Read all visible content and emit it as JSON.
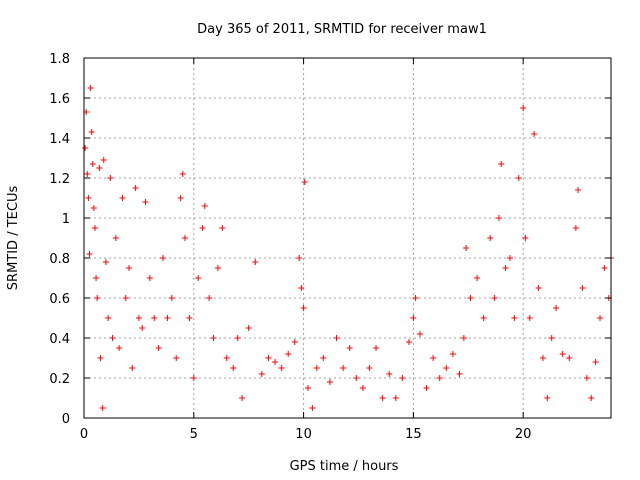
{
  "chart_data": {
    "type": "scatter",
    "title": "Day 365 of 2011, SRMTID for receiver maw1",
    "xlabel": "GPS time / hours",
    "ylabel": "SRMTID / TECUs",
    "xlim": [
      0,
      24
    ],
    "ylim": [
      0,
      1.8
    ],
    "xticks": [
      0,
      5,
      10,
      15,
      20
    ],
    "xtick_labels": [
      "0",
      "5",
      "10",
      "15",
      "20"
    ],
    "yticks": [
      0,
      0.2,
      0.4,
      0.6,
      0.8,
      1,
      1.2,
      1.4,
      1.6,
      1.8
    ],
    "ytick_labels": [
      "0",
      "0.2",
      "0.4",
      "0.6",
      "0.8",
      "1",
      "1.2",
      "1.4",
      "1.6",
      "1.8"
    ],
    "grid": true,
    "marker": "+",
    "color": "#ff0000",
    "series": [
      {
        "name": "SRMTID",
        "points": [
          [
            0.05,
            1.35
          ],
          [
            0.1,
            1.53
          ],
          [
            0.15,
            1.22
          ],
          [
            0.2,
            1.1
          ],
          [
            0.25,
            0.82
          ],
          [
            0.3,
            1.65
          ],
          [
            0.35,
            1.43
          ],
          [
            0.4,
            1.27
          ],
          [
            0.45,
            1.05
          ],
          [
            0.5,
            0.95
          ],
          [
            0.55,
            0.7
          ],
          [
            0.6,
            0.6
          ],
          [
            0.7,
            1.25
          ],
          [
            0.75,
            0.3
          ],
          [
            0.85,
            0.05
          ],
          [
            0.9,
            1.29
          ],
          [
            1.0,
            0.78
          ],
          [
            1.1,
            0.5
          ],
          [
            1.2,
            1.2
          ],
          [
            1.3,
            0.4
          ],
          [
            1.45,
            0.9
          ],
          [
            1.6,
            0.35
          ],
          [
            1.75,
            1.1
          ],
          [
            1.9,
            0.6
          ],
          [
            2.05,
            0.75
          ],
          [
            2.2,
            0.25
          ],
          [
            2.35,
            1.15
          ],
          [
            2.5,
            0.5
          ],
          [
            2.65,
            0.45
          ],
          [
            2.8,
            1.08
          ],
          [
            3.0,
            0.7
          ],
          [
            3.2,
            0.5
          ],
          [
            3.4,
            0.35
          ],
          [
            3.6,
            0.8
          ],
          [
            3.8,
            0.5
          ],
          [
            4.0,
            0.6
          ],
          [
            4.2,
            0.3
          ],
          [
            4.4,
            1.1
          ],
          [
            4.5,
            1.22
          ],
          [
            4.6,
            0.9
          ],
          [
            4.8,
            0.5
          ],
          [
            5.0,
            0.2
          ],
          [
            5.2,
            0.7
          ],
          [
            5.4,
            0.95
          ],
          [
            5.5,
            1.06
          ],
          [
            5.7,
            0.6
          ],
          [
            5.9,
            0.4
          ],
          [
            6.1,
            0.75
          ],
          [
            6.3,
            0.95
          ],
          [
            6.5,
            0.3
          ],
          [
            6.8,
            0.25
          ],
          [
            7.0,
            0.4
          ],
          [
            7.2,
            0.1
          ],
          [
            7.5,
            0.45
          ],
          [
            7.8,
            0.78
          ],
          [
            8.1,
            0.22
          ],
          [
            8.4,
            0.3
          ],
          [
            8.7,
            0.28
          ],
          [
            9.0,
            0.25
          ],
          [
            9.3,
            0.32
          ],
          [
            9.6,
            0.38
          ],
          [
            9.8,
            0.8
          ],
          [
            9.9,
            0.65
          ],
          [
            10.0,
            0.55
          ],
          [
            10.05,
            1.18
          ],
          [
            10.2,
            0.15
          ],
          [
            10.4,
            0.05
          ],
          [
            10.6,
            0.25
          ],
          [
            10.9,
            0.3
          ],
          [
            11.2,
            0.18
          ],
          [
            11.5,
            0.4
          ],
          [
            11.8,
            0.25
          ],
          [
            12.1,
            0.35
          ],
          [
            12.4,
            0.2
          ],
          [
            12.7,
            0.15
          ],
          [
            13.0,
            0.25
          ],
          [
            13.3,
            0.35
          ],
          [
            13.6,
            0.1
          ],
          [
            13.9,
            0.22
          ],
          [
            14.2,
            0.1
          ],
          [
            14.5,
            0.2
          ],
          [
            14.8,
            0.38
          ],
          [
            15.0,
            0.5
          ],
          [
            15.1,
            0.6
          ],
          [
            15.3,
            0.42
          ],
          [
            15.6,
            0.15
          ],
          [
            15.9,
            0.3
          ],
          [
            16.2,
            0.2
          ],
          [
            16.5,
            0.25
          ],
          [
            16.8,
            0.32
          ],
          [
            17.1,
            0.22
          ],
          [
            17.3,
            0.4
          ],
          [
            17.4,
            0.85
          ],
          [
            17.6,
            0.6
          ],
          [
            17.9,
            0.7
          ],
          [
            18.2,
            0.5
          ],
          [
            18.5,
            0.9
          ],
          [
            18.7,
            0.6
          ],
          [
            18.9,
            1.0
          ],
          [
            19.0,
            1.27
          ],
          [
            19.2,
            0.75
          ],
          [
            19.4,
            0.8
          ],
          [
            19.6,
            0.5
          ],
          [
            19.8,
            1.2
          ],
          [
            20.0,
            1.55
          ],
          [
            20.1,
            0.9
          ],
          [
            20.3,
            0.5
          ],
          [
            20.5,
            1.42
          ],
          [
            20.7,
            0.65
          ],
          [
            20.9,
            0.3
          ],
          [
            21.1,
            0.1
          ],
          [
            21.3,
            0.4
          ],
          [
            21.5,
            0.55
          ],
          [
            21.8,
            0.32
          ],
          [
            22.1,
            0.3
          ],
          [
            22.4,
            0.95
          ],
          [
            22.5,
            1.14
          ],
          [
            22.7,
            0.65
          ],
          [
            22.9,
            0.2
          ],
          [
            23.1,
            0.1
          ],
          [
            23.3,
            0.28
          ],
          [
            23.5,
            0.5
          ],
          [
            23.7,
            0.75
          ],
          [
            23.9,
            0.6
          ],
          [
            24.0,
            0.8
          ]
        ]
      }
    ]
  }
}
